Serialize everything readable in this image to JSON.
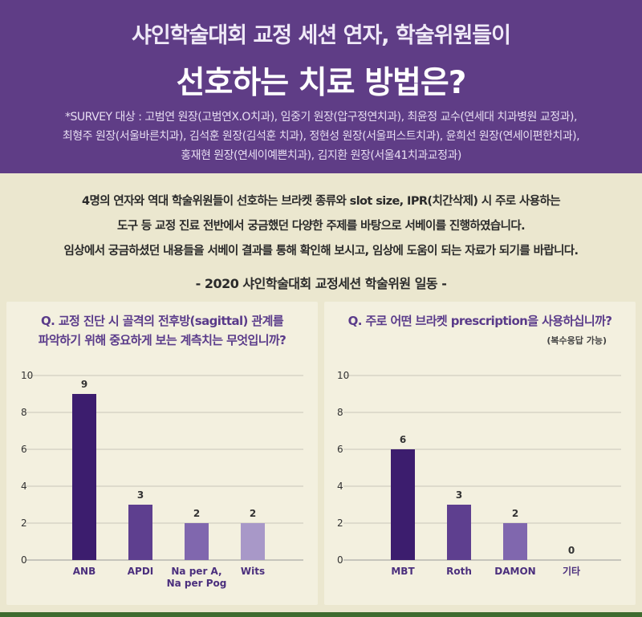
{
  "header": {
    "title_line1": "샤인학술대회 교정 세션 연자, 학술위원들이",
    "title_line2": "선호하는 치료 방법은?",
    "survey_line1": "*SURVEY 대상 : 고범연 원장(고범연X.O치과), 임중기 원장(압구정연치과), 최윤정 교수(연세대 치과병원 교정과),",
    "survey_line2": "최형주 원장(서울바른치과), 김석훈 원장(김석훈 치과), 정현성 원장(서울퍼스트치과), 윤희선 원장(연세이편한치과),",
    "survey_line3": "홍재현 원장(연세이예쁜치과), 김지환 원장(서울41치과교정과)"
  },
  "intro": {
    "line1": "4명의 연자와 역대 학술위원들이 선호하는 브라켓 종류와 slot size, IPR(치간삭제) 시 주로 사용하는",
    "line2": "도구 등 교정 진료 전반에서 궁금했던 다양한 주제를 바탕으로 서베이를 진행하였습니다.",
    "line3": "임상에서 궁금하셨던 내용들을 서베이 결과를 통해 확인해 보시고, 임상에 도움이 되는 자료가 되기를 바랍니다.",
    "team": "- 2020 샤인학술대회 교정세션 학술위원 일동 -"
  },
  "chart_data": [
    {
      "type": "bar",
      "title_line1": "Q. 교정 진단 시 골격의 전후방(sagittal) 관계를",
      "title_line2": "파악하기 위해 중요하게 보는 계측치는 무엇입니까?",
      "categories": [
        "ANB",
        "APDI",
        "Na per A,\nNa per Pog",
        "Wits"
      ],
      "values": [
        9,
        3,
        2,
        2
      ],
      "colors": [
        "#3c1d6e",
        "#5e3f8f",
        "#8067ae",
        "#a898c8"
      ],
      "yticks": [
        0,
        2,
        4,
        6,
        8,
        10
      ],
      "ylim": [
        0,
        10
      ],
      "grid": true
    },
    {
      "type": "bar",
      "title_line1": "Q. 주로 어떤 브라켓 prescription을 사용하십니까?",
      "note": "(복수응답 가능)",
      "categories": [
        "MBT",
        "Roth",
        "DAMON",
        "기타"
      ],
      "values": [
        6,
        3,
        2,
        0
      ],
      "colors": [
        "#3c1d6e",
        "#5e3f8f",
        "#8067ae",
        "#a898c8"
      ],
      "yticks": [
        0,
        2,
        4,
        6,
        8,
        10
      ],
      "ylim": [
        0,
        10
      ],
      "grid": true
    }
  ]
}
